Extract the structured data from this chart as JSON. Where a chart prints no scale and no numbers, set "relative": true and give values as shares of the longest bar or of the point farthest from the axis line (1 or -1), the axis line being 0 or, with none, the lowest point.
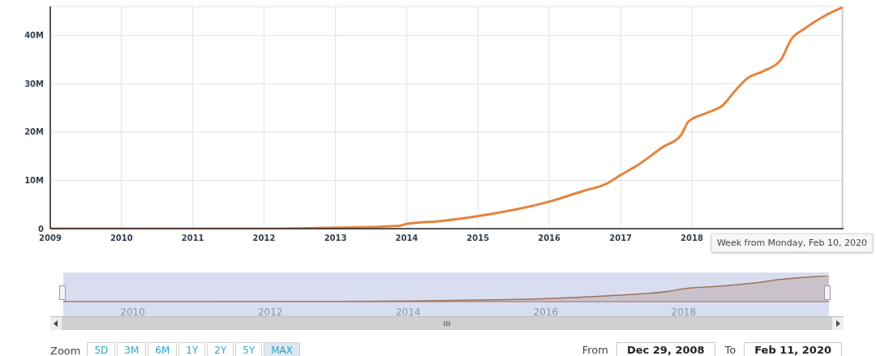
{
  "chart_data": [
    {
      "type": "line",
      "x": [
        "2009-01-01",
        "2012-01-01",
        "2013-01-01",
        "2013-11-25",
        "2014-01-01",
        "2014-07-01",
        "2015-01-01",
        "2016-01-01",
        "2016-07-01",
        "2016-10-15",
        "2017-01-01",
        "2017-04-15",
        "2017-08-01",
        "2017-11-05",
        "2017-12-15",
        "2018-03-15",
        "2018-06-15",
        "2018-08-01",
        "2018-10-15",
        "2019-01-01",
        "2019-04-01",
        "2019-05-25",
        "2019-08-01",
        "2019-11-05",
        "2020-02-10"
      ],
      "series": [
        {
          "color": "#e5833c",
          "values": [
            0,
            0,
            200000,
            600000,
            1000000,
            1600000,
            2600000,
            5600000,
            7900000,
            9200000,
            11100000,
            13600000,
            16800000,
            19300000,
            22200000,
            23900000,
            25800000,
            28100000,
            31200000,
            32600000,
            34900000,
            39200000,
            41400000,
            43900000,
            45800000
          ]
        }
      ],
      "xlim": [
        "2009-01-01",
        "2020-02-17"
      ],
      "xticks": [
        {
          "value": "2009-01-01",
          "label": "2009"
        },
        {
          "value": "2010-01-01",
          "label": "2010"
        },
        {
          "value": "2011-01-01",
          "label": "2011"
        },
        {
          "value": "2012-01-01",
          "label": "2012"
        },
        {
          "value": "2013-01-01",
          "label": "2013"
        },
        {
          "value": "2014-01-01",
          "label": "2014"
        },
        {
          "value": "2015-01-01",
          "label": "2015"
        },
        {
          "value": "2016-01-01",
          "label": "2016"
        },
        {
          "value": "2017-01-01",
          "label": "2017"
        },
        {
          "value": "2018-01-01",
          "label": "2018"
        }
      ],
      "ylim": [
        0,
        46000000
      ],
      "yticks": [
        {
          "value": 0,
          "label": "0"
        },
        {
          "value": 10000000,
          "label": "10M"
        },
        {
          "value": 20000000,
          "label": "20M"
        },
        {
          "value": 30000000,
          "label": "30M"
        },
        {
          "value": 40000000,
          "label": "40M"
        }
      ],
      "grid": true,
      "ref_lines": [
        {
          "axis": "x",
          "value": "2020-02-10",
          "label": "Week from Monday, Feb 10, 2020",
          "color": "#c8c8c8"
        }
      ]
    },
    {
      "type": "area",
      "relative": true,
      "x": [
        "2009-01-01",
        "2013-01-01",
        "2014-01-01",
        "2015-01-01",
        "2016-01-01",
        "2017-01-01",
        "2017-11-05",
        "2017-12-15",
        "2018-08-01",
        "2019-01-01",
        "2019-05-25",
        "2020-02-10"
      ],
      "series": [
        {
          "color": "#a0705a",
          "values": [
            0,
            0.004,
            0.02,
            0.06,
            0.12,
            0.24,
            0.42,
            0.48,
            0.61,
            0.71,
            0.85,
            1
          ]
        }
      ],
      "xlim": [
        "2008-12-29",
        "2020-02-11"
      ],
      "xticks": [
        {
          "value": "2010-01-01",
          "label": "2010"
        },
        {
          "value": "2012-01-01",
          "label": "2012"
        },
        {
          "value": "2014-01-01",
          "label": "2014"
        },
        {
          "value": "2016-01-01",
          "label": "2016"
        },
        {
          "value": "2018-01-01",
          "label": "2018"
        }
      ],
      "annotations": [
        "Zoom",
        "5D",
        "3M",
        "6M",
        "1Y",
        "2Y",
        "5Y",
        "MAX",
        "From",
        "Dec 29, 2008",
        "To",
        "Feb 11, 2020"
      ]
    }
  ]
}
